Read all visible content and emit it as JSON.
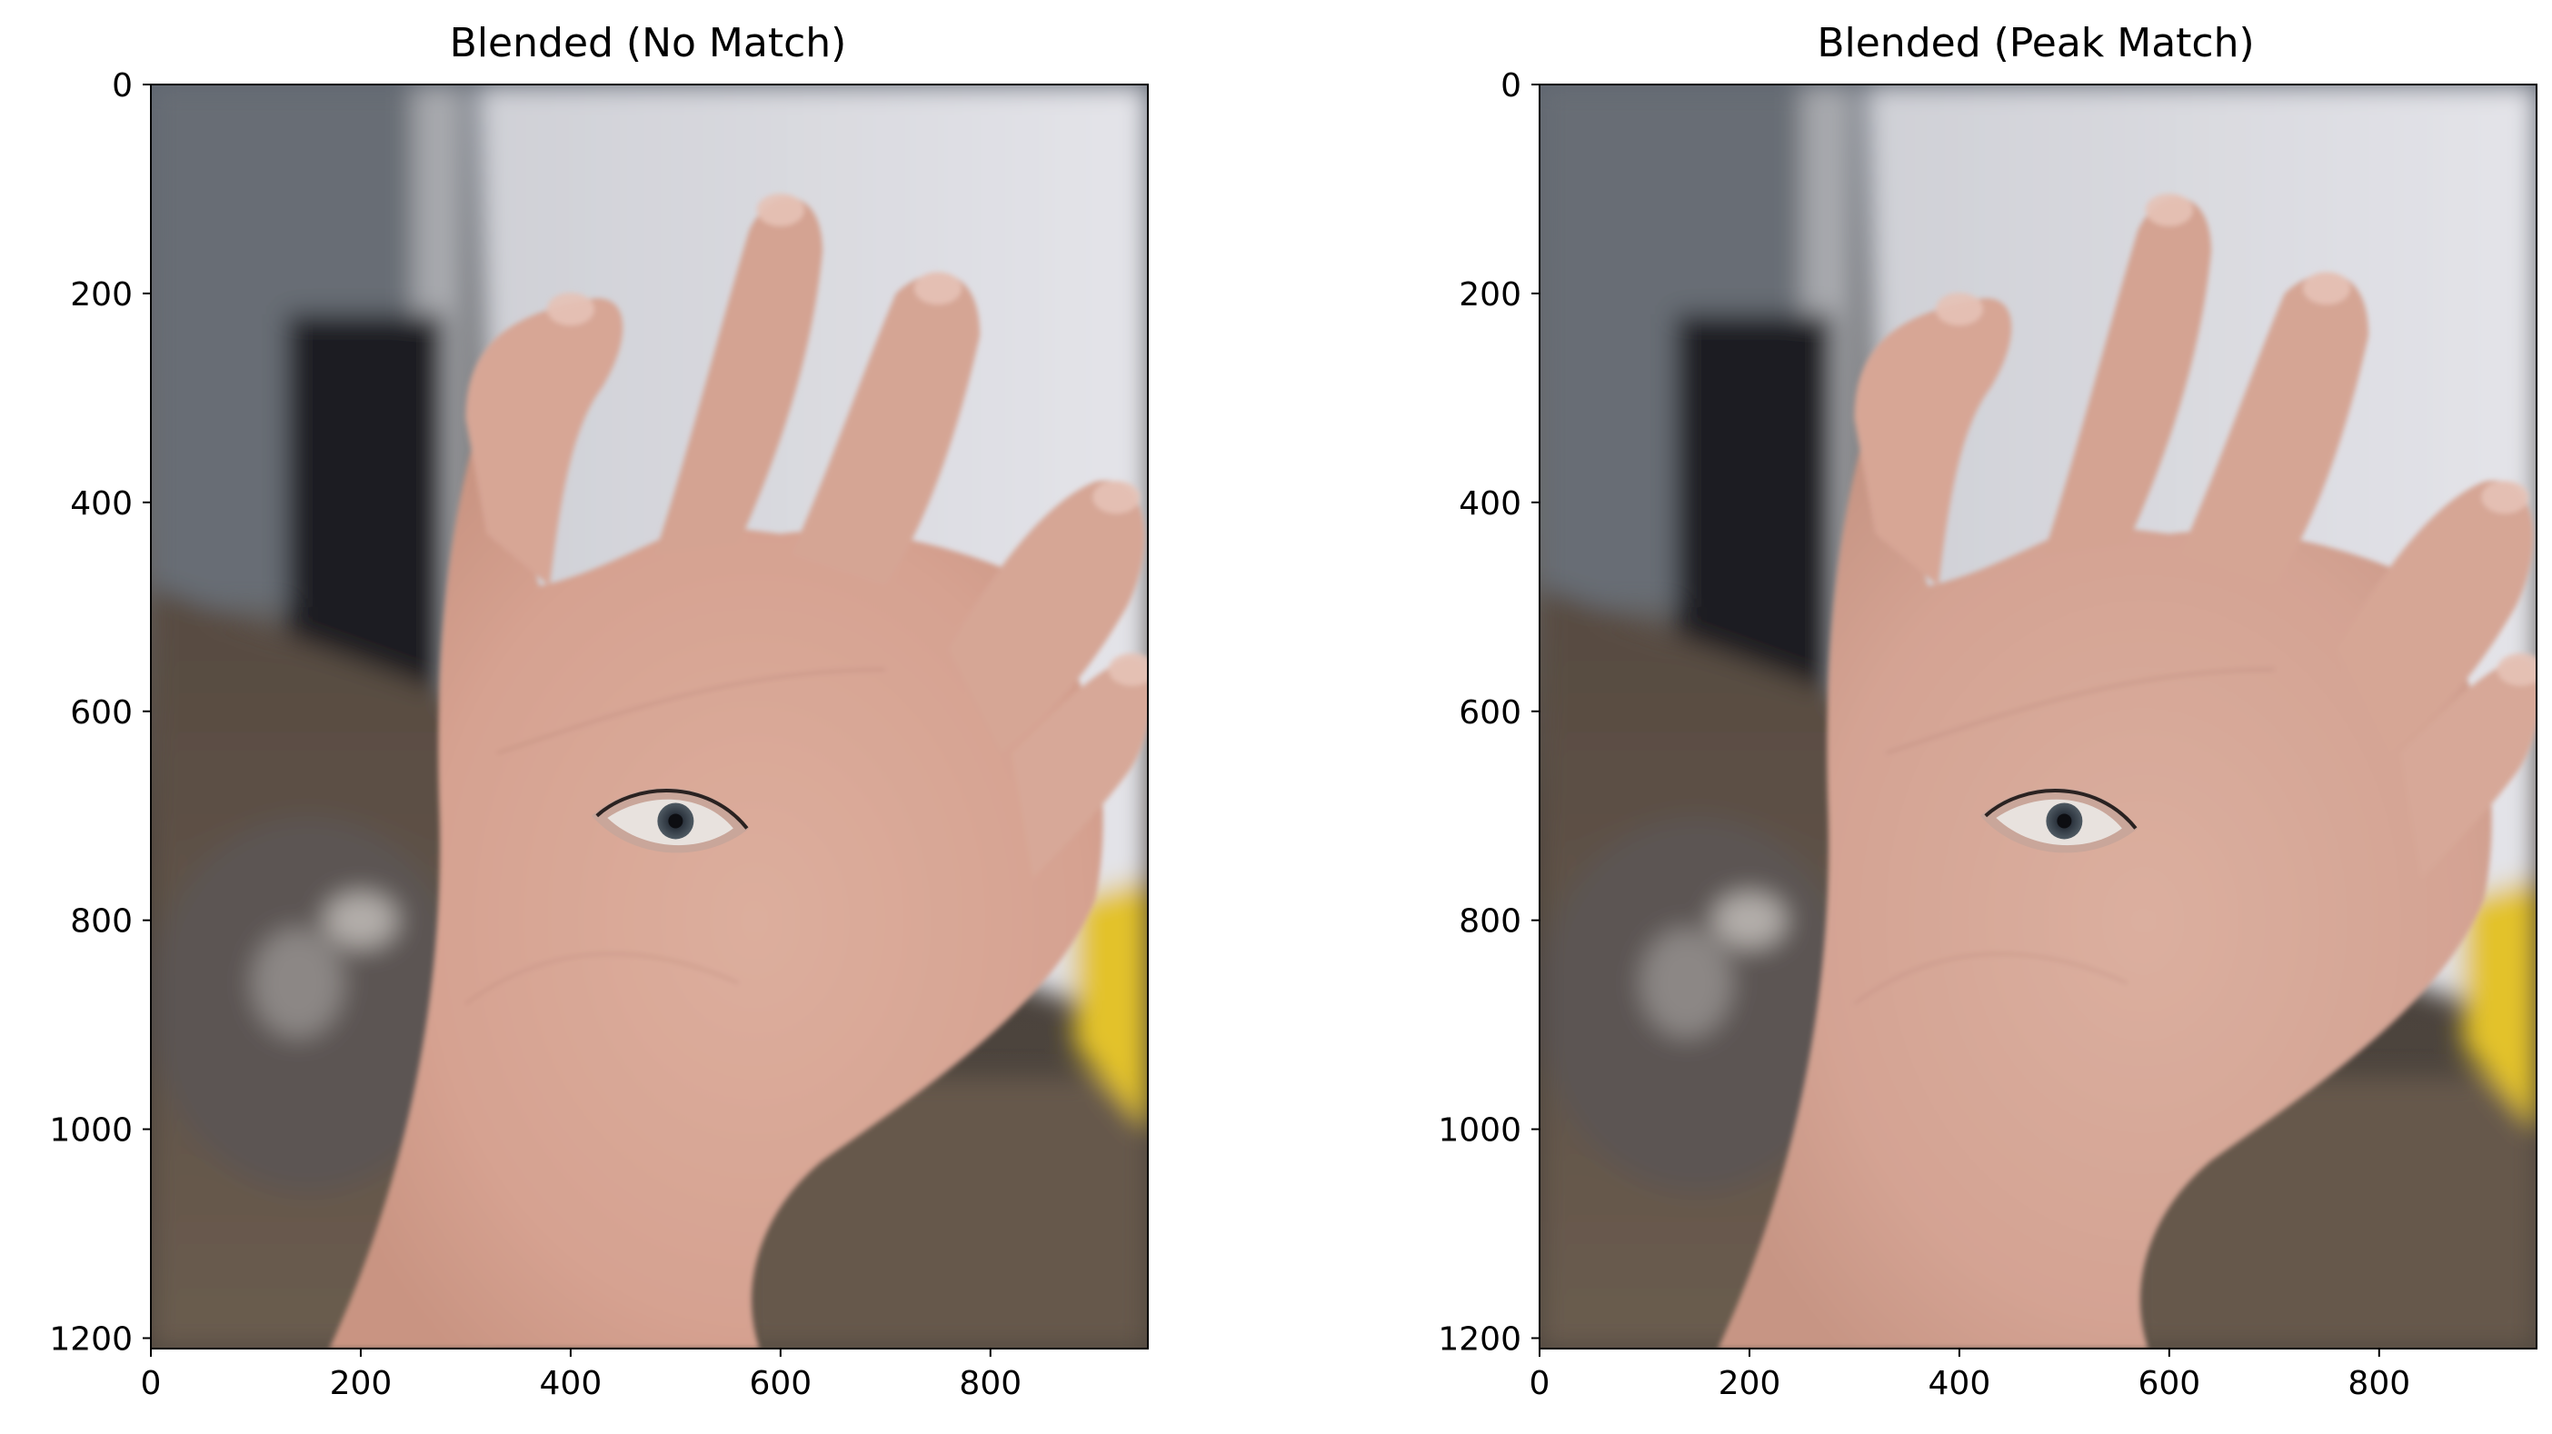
{
  "panels": [
    {
      "title": "Blended (No Match)",
      "xlim": [
        0,
        950
      ],
      "ylim": [
        1210,
        0
      ],
      "xticks": [
        {
          "value": 0,
          "label": "0"
        },
        {
          "value": 200,
          "label": "200"
        },
        {
          "value": 400,
          "label": "400"
        },
        {
          "value": 600,
          "label": "600"
        },
        {
          "value": 800,
          "label": "800"
        }
      ],
      "yticks": [
        {
          "value": 0,
          "label": "0"
        },
        {
          "value": 200,
          "label": "200"
        },
        {
          "value": 400,
          "label": "400"
        },
        {
          "value": 600,
          "label": "600"
        },
        {
          "value": 800,
          "label": "800"
        },
        {
          "value": 1000,
          "label": "1000"
        },
        {
          "value": 1200,
          "label": "1200"
        }
      ],
      "image_subject": "hand-with-eye",
      "skin_tint": "#d9a796"
    },
    {
      "title": "Blended (Peak Match)",
      "xlim": [
        0,
        950
      ],
      "ylim": [
        1210,
        0
      ],
      "xticks": [
        {
          "value": 0,
          "label": "0"
        },
        {
          "value": 200,
          "label": "200"
        },
        {
          "value": 400,
          "label": "400"
        },
        {
          "value": 600,
          "label": "600"
        },
        {
          "value": 800,
          "label": "800"
        }
      ],
      "yticks": [
        {
          "value": 0,
          "label": "0"
        },
        {
          "value": 200,
          "label": "200"
        },
        {
          "value": 400,
          "label": "400"
        },
        {
          "value": 600,
          "label": "600"
        },
        {
          "value": 800,
          "label": "800"
        },
        {
          "value": 1000,
          "label": "1000"
        },
        {
          "value": 1200,
          "label": "1200"
        }
      ],
      "image_subject": "hand-with-eye",
      "skin_tint": "#d7a797"
    }
  ]
}
